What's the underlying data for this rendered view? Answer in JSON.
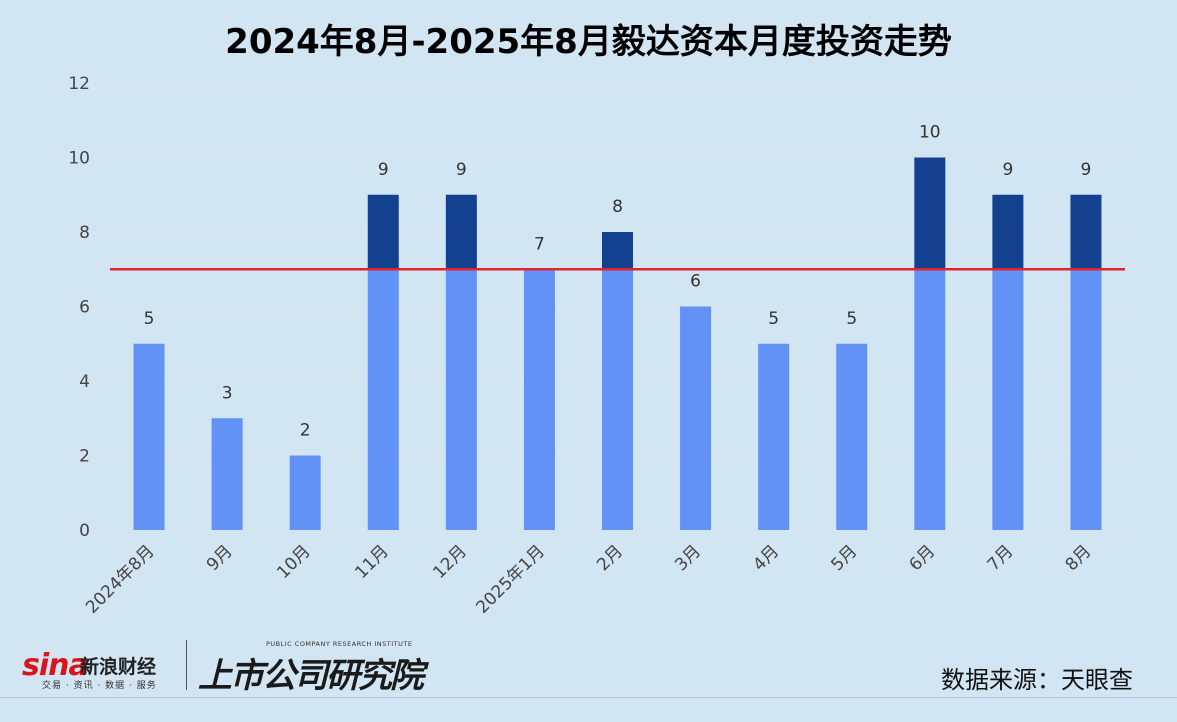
{
  "title": "2024年8月-2025年8月毅达资本月度投资走势",
  "footer": {
    "sina_logo_text": "sina",
    "sina_name": "新浪财经",
    "sina_tagline": "交易 · 资讯 · 数据 · 服务",
    "institute_en": "PUBLIC COMPANY RESEARCH INSTITUTE",
    "institute_cn": "上市公司研究院",
    "source": "数据来源：天眼查"
  },
  "colors": {
    "bar_base": "#6392f7",
    "bar_excess": "#13408f",
    "reference_line": "#e0242e",
    "grid": "#dfe3e6",
    "background": "#d2e5f3"
  },
  "chart_data": {
    "type": "bar",
    "title": "2024年8月-2025年8月毅达资本月度投资走势",
    "xlabel": "",
    "ylabel": "",
    "categories": [
      "2024年8月",
      "9月",
      "10月",
      "11月",
      "12月",
      "2025年1月",
      "2月",
      "3月",
      "4月",
      "5月",
      "6月",
      "7月",
      "8月"
    ],
    "values": [
      5,
      3,
      2,
      9,
      9,
      7,
      8,
      6,
      5,
      5,
      10,
      9,
      9
    ],
    "ylim": [
      0,
      12
    ],
    "yticks": [
      0,
      2,
      4,
      6,
      8,
      10,
      12
    ],
    "reference_line": 7,
    "grid": true,
    "data_labels": true
  }
}
